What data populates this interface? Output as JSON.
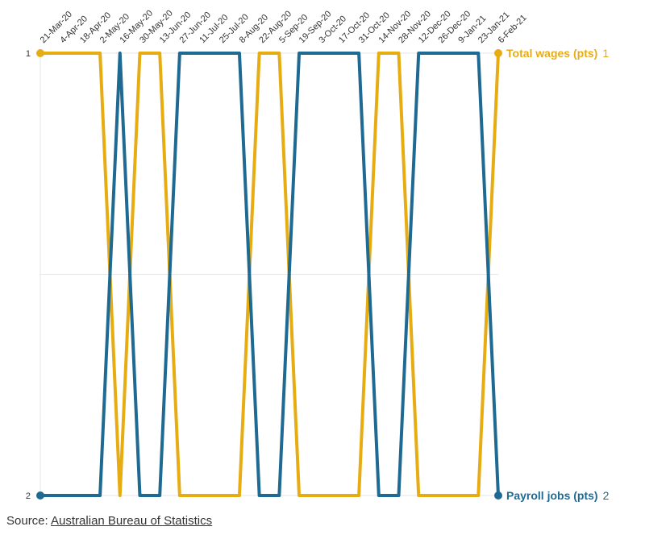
{
  "chart_data": {
    "type": "line",
    "title": "",
    "xlabel": "",
    "ylabel": "",
    "ylim": [
      1,
      2
    ],
    "y_inverted": true,
    "ytick_labels": [
      "1",
      "2"
    ],
    "categories": [
      "21-Mar-20",
      "4-Apr-20",
      "18-Apr-20",
      "2-May-20",
      "16-May-20",
      "30-May-20",
      "13-Jun-20",
      "27-Jun-20",
      "11-Jul-20",
      "25-Jul-20",
      "8-Aug-20",
      "22-Aug-20",
      "5-Sep-20",
      "19-Sep-20",
      "3-Oct-20",
      "17-Oct-20",
      "31-Oct-20",
      "14-Nov-20",
      "28-Nov-20",
      "12-Dec-20",
      "26-Dec-20",
      "9-Jan-21",
      "23-Jan-21",
      "6-Feb-21"
    ],
    "series": [
      {
        "name": "Total wages (pts)",
        "color": "#e8ac13",
        "end_rank_label": "1",
        "values": [
          1,
          1,
          1,
          1,
          2,
          1,
          1,
          2,
          2,
          2,
          2,
          1,
          1,
          2,
          2,
          2,
          2,
          1,
          1,
          2,
          2,
          2,
          2,
          1
        ]
      },
      {
        "name": "Payroll jobs (pts)",
        "color": "#1f6a93",
        "end_rank_label": "2",
        "values": [
          2,
          2,
          2,
          2,
          1,
          2,
          2,
          1,
          1,
          1,
          1,
          2,
          2,
          1,
          1,
          1,
          1,
          2,
          2,
          1,
          1,
          1,
          1,
          2
        ]
      }
    ],
    "grid": true
  },
  "source": {
    "prefix": "Source: ",
    "link_text": "Australian Bureau of Statistics"
  }
}
